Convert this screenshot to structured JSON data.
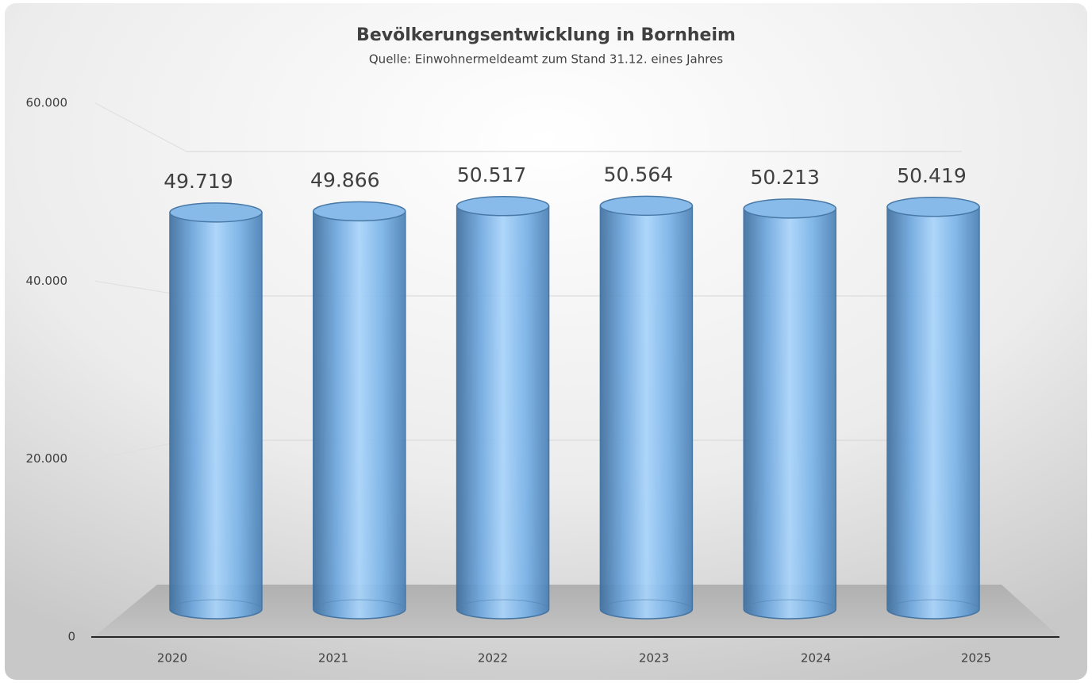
{
  "chart_data": {
    "type": "bar",
    "title": "Bevölkerungsentwicklung in Bornheim",
    "subtitle": "Quelle: Einwohnermeldeamt zum Stand 31.12. eines Jahres",
    "categories": [
      "2020",
      "2021",
      "2022",
      "2023",
      "2024",
      "2025"
    ],
    "values": [
      49719,
      49866,
      50517,
      50564,
      50213,
      50419
    ],
    "value_labels": [
      "49.719",
      "49.866",
      "50.517",
      "50.564",
      "50.213",
      "50.419"
    ],
    "color": "#5b9bd5",
    "ylim": [
      0,
      60000
    ],
    "yticks": [
      0,
      {
        "value": 20000,
        "label": "20.000"
      },
      {
        "value": 40000,
        "label": "40.000"
      },
      {
        "value": 60000,
        "label": "60.000"
      }
    ],
    "grid": true
  }
}
